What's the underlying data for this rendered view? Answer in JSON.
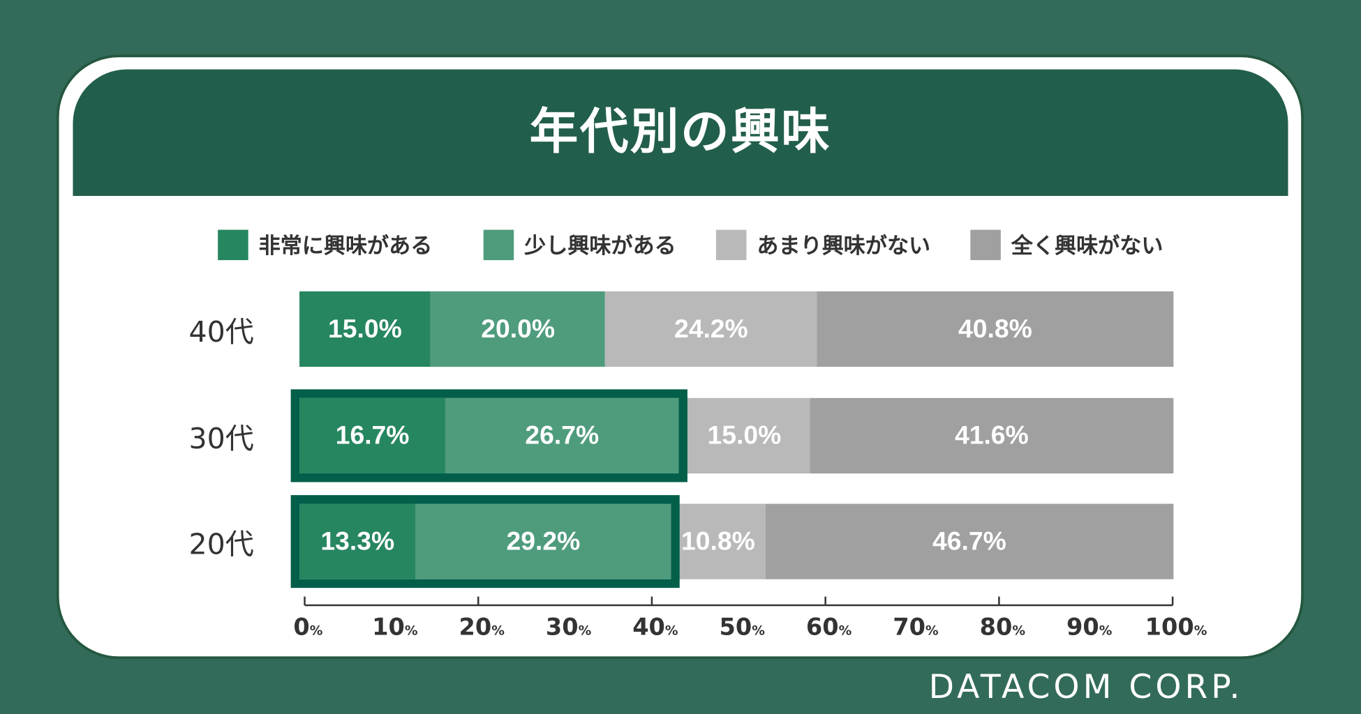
{
  "chart_data": {
    "type": "bar",
    "orientation": "horizontal",
    "stacked": true,
    "title": "年代別の興味",
    "categories": [
      "40代",
      "30代",
      "20代"
    ],
    "series": [
      {
        "name": "非常に興味がある",
        "color": "#268660",
        "values": [
          15.0,
          16.7,
          13.3
        ]
      },
      {
        "name": "少し興味がある",
        "color": "#4f9c7d",
        "values": [
          20.0,
          26.7,
          29.2
        ]
      },
      {
        "name": "あまり興味がない",
        "color": "#b9b9b9",
        "values": [
          24.2,
          15.0,
          10.8
        ]
      },
      {
        "name": "全く興味がない",
        "color": "#a0a0a0",
        "values": [
          40.8,
          41.6,
          46.7
        ]
      }
    ],
    "data_labels": [
      [
        "15.0%",
        "20.0%",
        "24.2%",
        "40.8%"
      ],
      [
        "16.7%",
        "26.7%",
        "15.0%",
        "41.6%"
      ],
      [
        "13.3%",
        "29.2%",
        "10.8%",
        "46.7%"
      ]
    ],
    "highlighted_categories": [
      "30代",
      "20代"
    ],
    "highlight_color": "#035f4a",
    "xlim": [
      0,
      100
    ],
    "x_ticks": [
      "0",
      "10",
      "20",
      "30",
      "40",
      "50",
      "60",
      "70",
      "80",
      "90",
      "100"
    ],
    "x_tick_unit": "%",
    "legend_position": "top",
    "grid": false
  },
  "brand": "DATACOM CORP."
}
